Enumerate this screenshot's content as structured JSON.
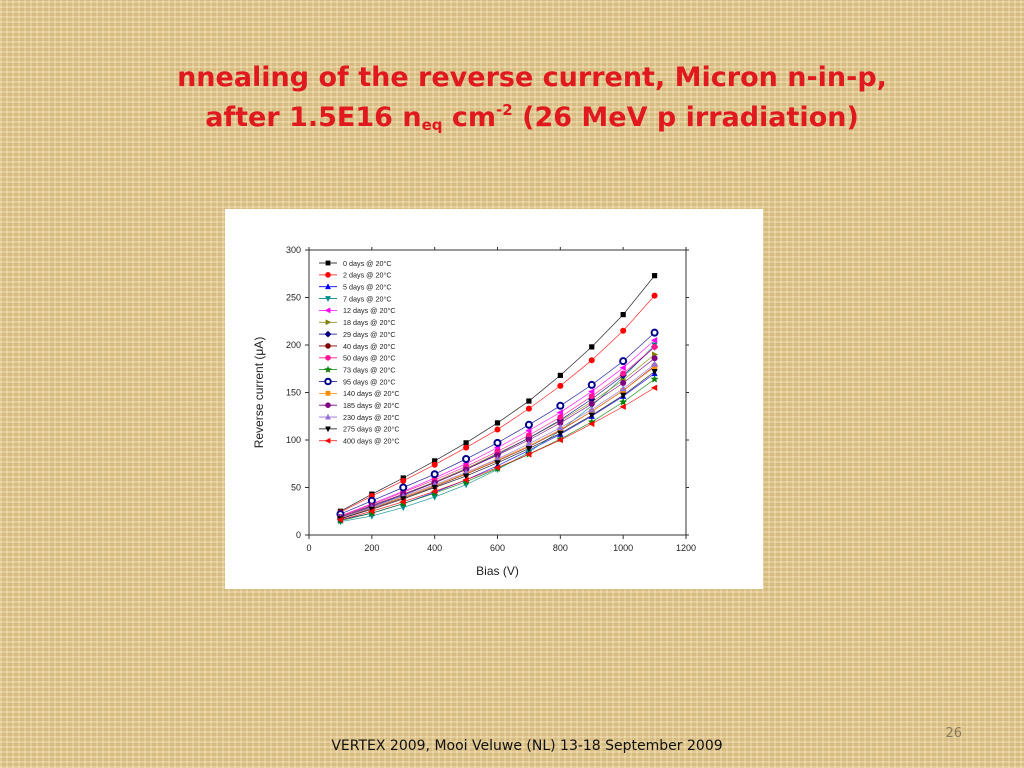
{
  "slide": {
    "title_line1": "nnealing of the reverse current, Micron n-in-p,",
    "title_line2_pre": "after 1.5E16 n",
    "title_sub": "eq",
    "title_mid": " cm",
    "title_sup": "-2",
    "title_post": " (26 MeV p irradiation)",
    "footer": "VERTEX 2009, Mooi Veluwe (NL) 13-18 September 2009",
    "page_number": "26"
  },
  "chart_data": {
    "type": "line",
    "title": "",
    "xlabel": "Bias (V)",
    "ylabel": "Reverse current (μA)",
    "xlim": [
      0,
      1200
    ],
    "ylim": [
      0,
      300
    ],
    "x_ticks": [
      0,
      200,
      400,
      600,
      800,
      1000,
      1200
    ],
    "y_ticks": [
      0,
      50,
      100,
      150,
      200,
      250,
      300
    ],
    "legend_position": "top-left",
    "x": [
      100,
      200,
      300,
      400,
      500,
      600,
      700,
      800,
      900,
      1000,
      1100
    ],
    "series": [
      {
        "name": "0 days @ 20°C",
        "color": "#000000",
        "marker": "square",
        "values": [
          25,
          43,
          60,
          78,
          97,
          118,
          141,
          168,
          198,
          232,
          273
        ]
      },
      {
        "name": "2 days @ 20°C",
        "color": "#ff0000",
        "marker": "circle",
        "values": [
          24,
          41,
          57,
          74,
          92,
          111,
          133,
          157,
          184,
          215,
          252
        ]
      },
      {
        "name": "5 days @ 20°C",
        "color": "#0000ff",
        "marker": "triangle-up",
        "values": [
          16,
          23,
          33,
          45,
          58,
          73,
          89,
          106,
          125,
          146,
          170
        ]
      },
      {
        "name": "7 days @ 20°C",
        "color": "#008b8b",
        "marker": "triangle-down",
        "values": [
          14,
          20,
          29,
          40,
          53,
          69,
          87,
          110,
          136,
          166,
          200
        ]
      },
      {
        "name": "12 days @ 20°C",
        "color": "#ff00ff",
        "marker": "triangle-left",
        "values": [
          20,
          33,
          46,
          60,
          75,
          92,
          110,
          129,
          151,
          176,
          205
        ]
      },
      {
        "name": "18 days @ 20°C",
        "color": "#808000",
        "marker": "triangle-right",
        "values": [
          19,
          31,
          43,
          56,
          70,
          86,
          102,
          120,
          140,
          163,
          190
        ]
      },
      {
        "name": "29 days @ 20°C",
        "color": "#000080",
        "marker": "diamond",
        "values": [
          18,
          30,
          42,
          55,
          69,
          85,
          102,
          121,
          143,
          168,
          198
        ]
      },
      {
        "name": "40 days @ 20°C",
        "color": "#800000",
        "marker": "circle",
        "values": [
          17,
          28,
          39,
          51,
          64,
          78,
          93,
          110,
          130,
          152,
          178
        ]
      },
      {
        "name": "50 days @ 20°C",
        "color": "#ff1493",
        "marker": "circle",
        "values": [
          20,
          32,
          45,
          58,
          72,
          88,
          105,
          124,
          146,
          170,
          198
        ]
      },
      {
        "name": "73 days @ 20°C",
        "color": "#008000",
        "marker": "star",
        "values": [
          15,
          23,
          33,
          44,
          56,
          70,
          85,
          101,
          119,
          140,
          164
        ]
      },
      {
        "name": "95 days @ 20°C",
        "color": "#00008b",
        "marker": "circle-half",
        "values": [
          22,
          36,
          50,
          64,
          80,
          97,
          116,
          136,
          158,
          183,
          213
        ]
      },
      {
        "name": "140 days @ 20°C",
        "color": "#ff8c00",
        "marker": "square",
        "values": [
          18,
          29,
          40,
          52,
          65,
          79,
          94,
          111,
          130,
          152,
          177
        ]
      },
      {
        "name": "185 days @ 20°C",
        "color": "#800080",
        "marker": "circle",
        "values": [
          19,
          31,
          43,
          55,
          69,
          84,
          100,
          118,
          138,
          160,
          186
        ]
      },
      {
        "name": "230 days @ 20°C",
        "color": "#9370db",
        "marker": "triangle-up",
        "values": [
          18,
          29,
          41,
          53,
          66,
          80,
          96,
          113,
          132,
          154,
          180
        ]
      },
      {
        "name": "275 days @ 20°C",
        "color": "#000000",
        "marker": "triangle-down",
        "values": [
          17,
          27,
          38,
          50,
          62,
          76,
          91,
          107,
          126,
          147,
          172
        ]
      },
      {
        "name": "400 days @ 20°C",
        "color": "#ff0000",
        "marker": "triangle-left",
        "values": [
          16,
          25,
          35,
          46,
          58,
          71,
          85,
          100,
          117,
          135,
          155
        ]
      }
    ]
  }
}
